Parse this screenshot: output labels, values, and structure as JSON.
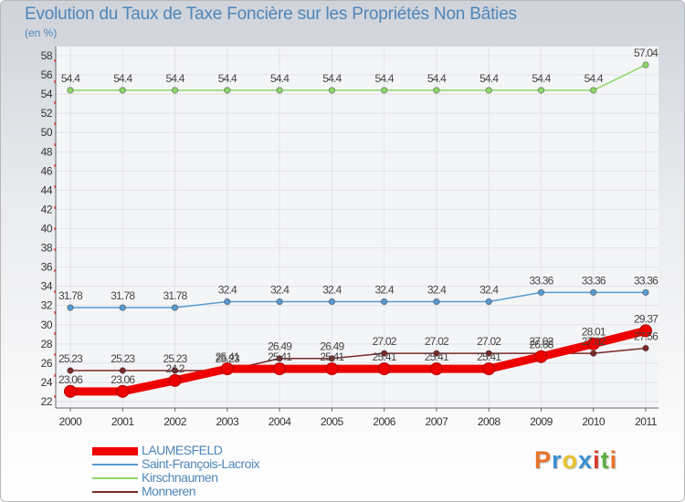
{
  "header": {
    "title": "Evolution du Taux de Taxe Foncière sur les Propriétés Non Bâties",
    "unit": "(en %)"
  },
  "brand": {
    "text": "Proxiti",
    "colors": [
      "#e8732a",
      "#3a8fd0",
      "#e8c22e",
      "#3a8fd0",
      "#d63a2f",
      "#5bb044",
      "#e8732a"
    ]
  },
  "chart_data": {
    "type": "line",
    "title": "Evolution du Taux de Taxe Foncière sur les Propriétés Non Bâties",
    "ylabel": "(en %)",
    "xlabel": "",
    "ylim": [
      22,
      58
    ],
    "yticks": [
      22,
      24,
      26,
      28,
      30,
      32,
      34,
      36,
      38,
      40,
      42,
      44,
      46,
      48,
      50,
      52,
      54,
      56,
      58
    ],
    "categories": [
      "2000",
      "2001",
      "2002",
      "2003",
      "2004",
      "2005",
      "2006",
      "2007",
      "2008",
      "2009",
      "2010",
      "2011"
    ],
    "grid": true,
    "legend_position": "bottom-left",
    "series": [
      {
        "name": "LAUMESFELD",
        "color": "#ee0000",
        "width": "thick",
        "values": [
          23.06,
          23.06,
          24.2,
          25.41,
          25.41,
          25.41,
          25.41,
          25.41,
          25.41,
          26.68,
          28.01,
          29.37
        ],
        "labels": [
          "23.06",
          "23.06",
          "24.2",
          "25.41",
          "25.41",
          "25.41",
          "25.41",
          "25.41",
          "25.41",
          "26.68",
          "28.01",
          "29.37"
        ]
      },
      {
        "name": "Saint-François-Lacroix",
        "color": "#5a9ad0",
        "width": "thin",
        "values": [
          31.78,
          31.78,
          31.78,
          32.4,
          32.4,
          32.4,
          32.4,
          32.4,
          32.4,
          33.36,
          33.36,
          33.36
        ],
        "labels": [
          "31.78",
          "31.78",
          "31.78",
          "32.4",
          "32.4",
          "32.4",
          "32.4",
          "32.4",
          "32.4",
          "33.36",
          "33.36",
          "33.36"
        ]
      },
      {
        "name": "Kirschnaumen",
        "color": "#8fd86a",
        "width": "thin",
        "values": [
          54.4,
          54.4,
          54.4,
          54.4,
          54.4,
          54.4,
          54.4,
          54.4,
          54.4,
          54.4,
          54.4,
          57.04
        ],
        "labels": [
          "54.4",
          "54.4",
          "54.4",
          "54.4",
          "54.4",
          "54.4",
          "54.4",
          "54.4",
          "54.4",
          "54.4",
          "54.4",
          "57.04"
        ]
      },
      {
        "name": "Monneren",
        "color": "#7a2a2a",
        "width": "thin",
        "values": [
          25.23,
          25.23,
          25.23,
          25.23,
          26.49,
          26.49,
          27.02,
          27.02,
          27.02,
          27.02,
          27.02,
          27.56
        ],
        "labels": [
          "25.23",
          "25.23",
          "25.23",
          "25.23",
          "26.49",
          "26.49",
          "27.02",
          "27.02",
          "27.02",
          "27.02",
          "27.02",
          "27.56"
        ]
      }
    ]
  }
}
